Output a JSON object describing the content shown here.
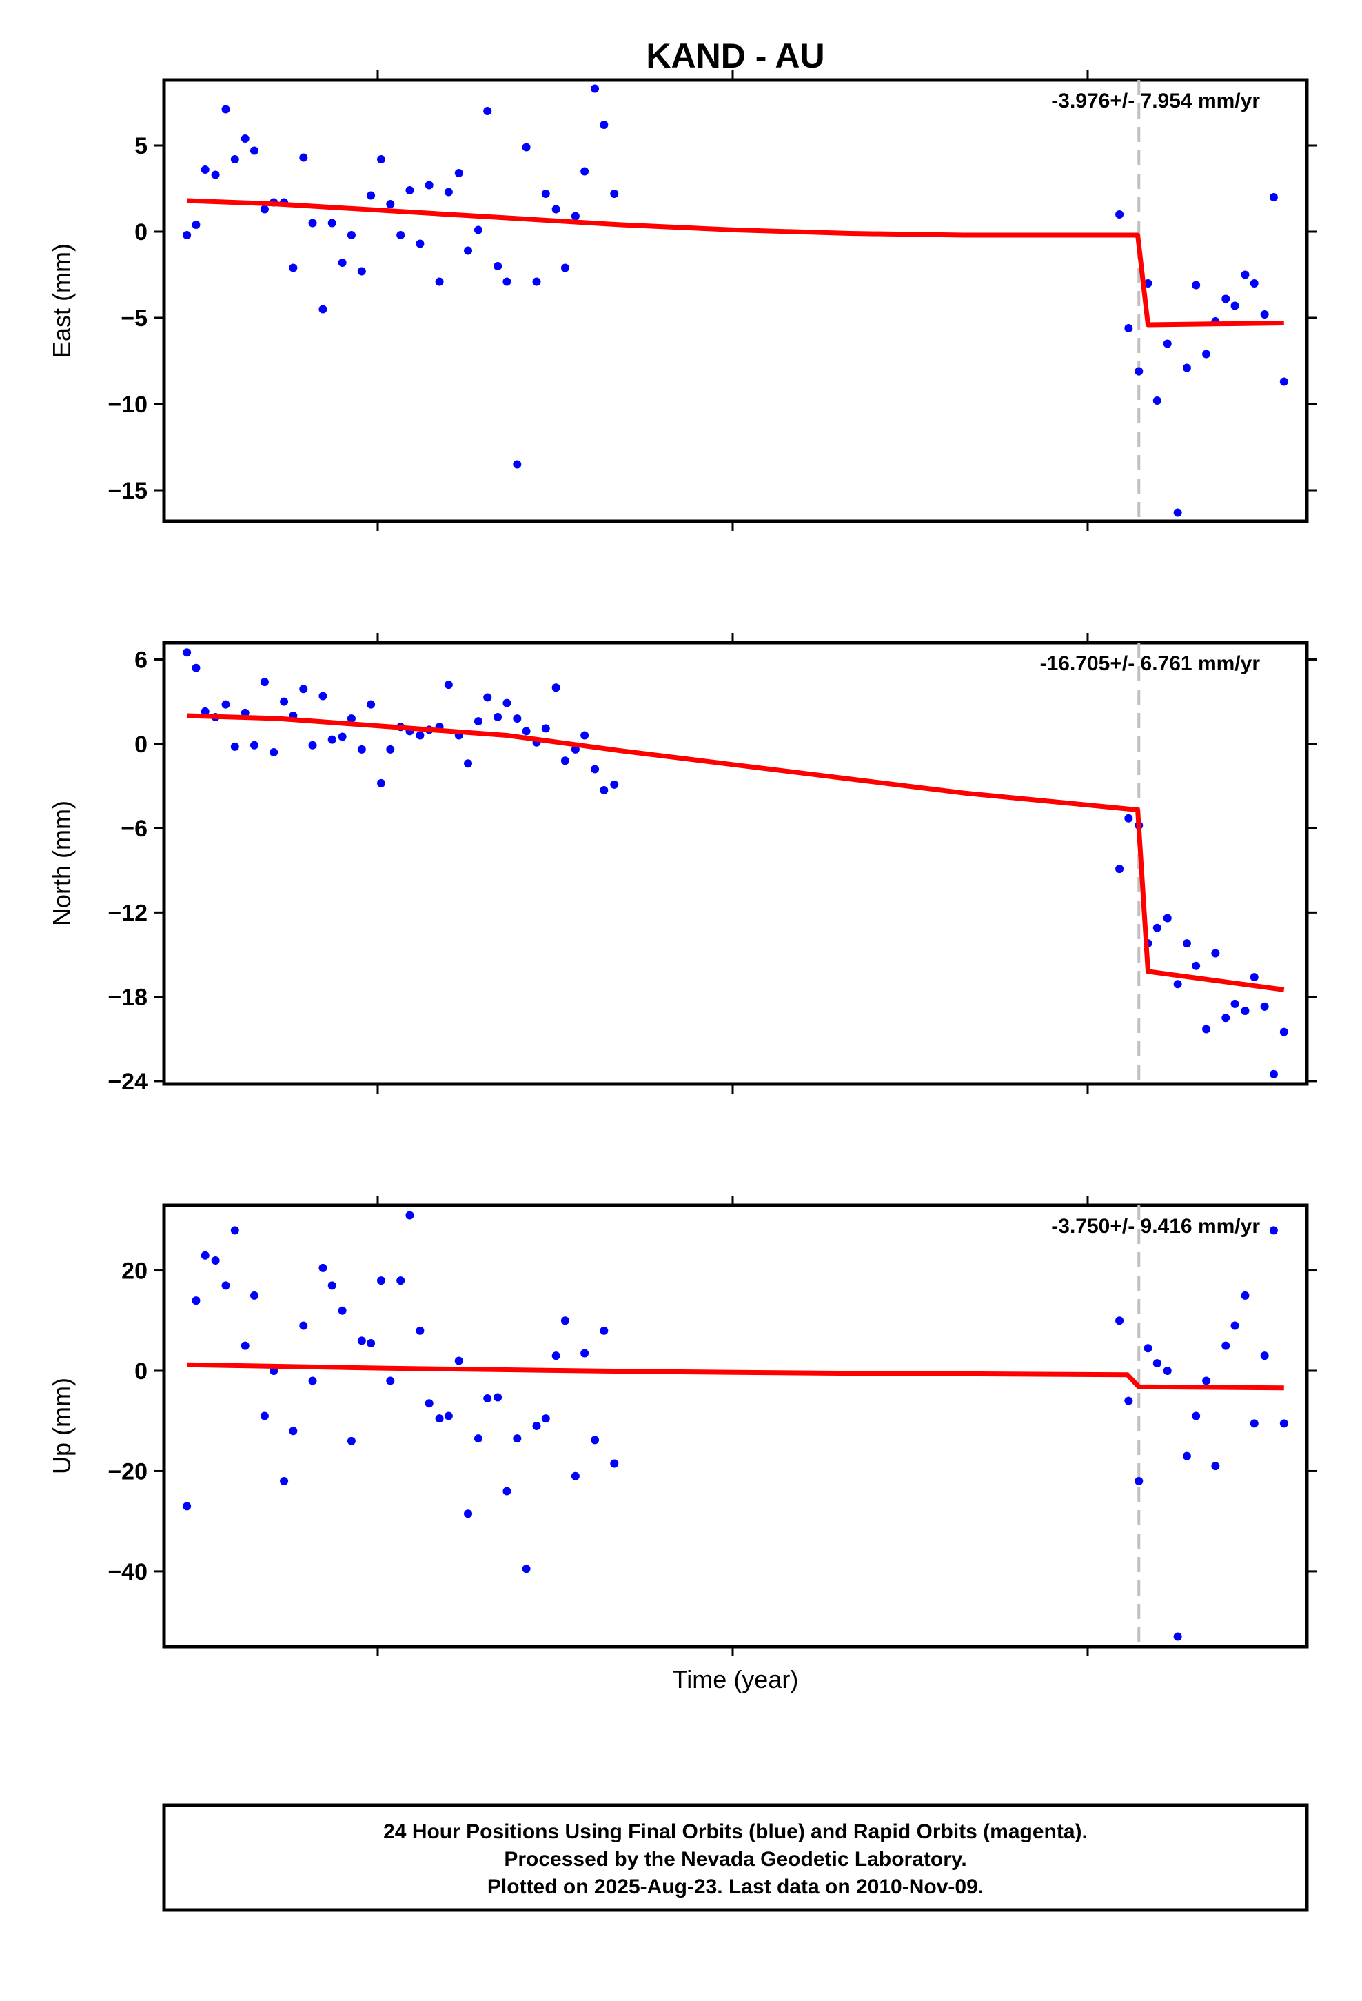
{
  "title": "KAND - AU",
  "xlabel": "Time (year)",
  "footer": {
    "line1": "24 Hour Positions Using Final Orbits (blue) and Rapid Orbits (magenta).",
    "line2": "Processed by the Nevada Geodetic Laboratory.",
    "line3": "Plotted on 2025-Aug-23. Last data on 2010-Nov-09."
  },
  "colors": {
    "data": "#0000ff",
    "model": "#ff0000",
    "break": "#c0c0c0",
    "frame": "#000000"
  },
  "chart_data": [
    {
      "type": "scatter",
      "ylabel": "East (mm)",
      "rate_label": "-3.976+/- 7.954 mm/yr",
      "ylim": [
        -16.8,
        8.8
      ],
      "xlim": [
        0,
        100
      ],
      "yticks": [
        5,
        0,
        -5,
        -10,
        -15
      ],
      "ytick_labels": [
        "5",
        "0",
        "−5",
        "−10",
        "−15"
      ],
      "break_x": 85.3,
      "points": [
        [
          2,
          -0.2
        ],
        [
          2.8,
          0.4
        ],
        [
          3.6,
          3.6
        ],
        [
          4.5,
          3.3
        ],
        [
          5.4,
          7.1
        ],
        [
          6.2,
          4.2
        ],
        [
          7.1,
          5.4
        ],
        [
          7.9,
          4.7
        ],
        [
          8.8,
          1.3
        ],
        [
          9.6,
          1.7
        ],
        [
          10.5,
          1.7
        ],
        [
          11.3,
          -2.1
        ],
        [
          12.2,
          4.3
        ],
        [
          13,
          0.5
        ],
        [
          13.9,
          -4.5
        ],
        [
          14.7,
          0.5
        ],
        [
          15.6,
          -1.8
        ],
        [
          16.4,
          -0.2
        ],
        [
          17.3,
          -2.3
        ],
        [
          18.1,
          2.1
        ],
        [
          19,
          4.2
        ],
        [
          19.8,
          1.6
        ],
        [
          20.7,
          -0.2
        ],
        [
          21.5,
          2.4
        ],
        [
          22.4,
          -0.7
        ],
        [
          23.2,
          2.7
        ],
        [
          24.1,
          -2.9
        ],
        [
          24.9,
          2.3
        ],
        [
          25.8,
          3.4
        ],
        [
          26.6,
          -1.1
        ],
        [
          27.5,
          0.1
        ],
        [
          28.3,
          7.0
        ],
        [
          29.2,
          -2.0
        ],
        [
          30,
          -2.9
        ],
        [
          30.9,
          -13.5
        ],
        [
          31.7,
          4.9
        ],
        [
          32.6,
          -2.9
        ],
        [
          33.4,
          2.2
        ],
        [
          34.3,
          1.3
        ],
        [
          35.1,
          -2.1
        ],
        [
          36,
          0.9
        ],
        [
          36.8,
          3.5
        ],
        [
          37.7,
          8.3
        ],
        [
          38.5,
          6.2
        ],
        [
          39.4,
          2.2
        ],
        [
          83.6,
          1.0
        ],
        [
          84.4,
          -5.6
        ],
        [
          85.3,
          -8.1
        ],
        [
          86.1,
          -3.0
        ],
        [
          86.9,
          -9.8
        ],
        [
          87.8,
          -6.5
        ],
        [
          88.7,
          -16.3
        ],
        [
          89.5,
          -7.9
        ],
        [
          90.3,
          -3.1
        ],
        [
          91.2,
          -7.1
        ],
        [
          92,
          -5.2
        ],
        [
          92.9,
          -3.9
        ],
        [
          93.7,
          -4.3
        ],
        [
          94.6,
          -2.5
        ],
        [
          95.4,
          -3.0
        ],
        [
          96.3,
          -4.8
        ],
        [
          97.1,
          2.0
        ],
        [
          98,
          -8.7
        ]
      ],
      "model": [
        [
          2,
          1.8
        ],
        [
          10,
          1.6
        ],
        [
          20,
          1.2
        ],
        [
          30,
          0.8
        ],
        [
          40,
          0.4
        ],
        [
          50,
          0.1
        ],
        [
          60,
          -0.1
        ],
        [
          70,
          -0.2
        ],
        [
          85.2,
          -0.2
        ],
        [
          86.1,
          -5.4
        ],
        [
          98,
          -5.3
        ]
      ]
    },
    {
      "type": "scatter",
      "ylabel": "North (mm)",
      "rate_label": "-16.705+/- 6.761 mm/yr",
      "ylim": [
        -24.2,
        7.2
      ],
      "xlim": [
        0,
        100
      ],
      "yticks": [
        6,
        0,
        -6,
        -12,
        -18,
        -24
      ],
      "ytick_labels": [
        "6",
        "0",
        "−6",
        "−12",
        "−18",
        "−24"
      ],
      "break_x": 85.3,
      "points": [
        [
          2,
          6.5
        ],
        [
          2.8,
          5.4
        ],
        [
          3.6,
          2.3
        ],
        [
          4.5,
          1.9
        ],
        [
          5.4,
          2.8
        ],
        [
          6.2,
          -0.2
        ],
        [
          7.1,
          2.2
        ],
        [
          7.9,
          -0.1
        ],
        [
          8.8,
          4.4
        ],
        [
          9.6,
          -0.6
        ],
        [
          10.5,
          3.0
        ],
        [
          11.3,
          2.0
        ],
        [
          12.2,
          3.9
        ],
        [
          13,
          -0.1
        ],
        [
          13.9,
          3.4
        ],
        [
          14.7,
          0.3
        ],
        [
          15.6,
          0.5
        ],
        [
          16.4,
          1.8
        ],
        [
          17.3,
          -0.4
        ],
        [
          18.1,
          2.8
        ],
        [
          19,
          -2.8
        ],
        [
          19.8,
          -0.4
        ],
        [
          20.7,
          1.2
        ],
        [
          21.5,
          0.9
        ],
        [
          22.4,
          0.6
        ],
        [
          23.2,
          1.0
        ],
        [
          24.1,
          1.2
        ],
        [
          24.9,
          4.2
        ],
        [
          25.8,
          0.6
        ],
        [
          26.6,
          -1.4
        ],
        [
          27.5,
          1.6
        ],
        [
          28.3,
          3.3
        ],
        [
          29.2,
          1.9
        ],
        [
          30,
          2.9
        ],
        [
          30.9,
          1.8
        ],
        [
          31.7,
          0.9
        ],
        [
          32.6,
          0.1
        ],
        [
          33.4,
          1.1
        ],
        [
          34.3,
          4.0
        ],
        [
          35.1,
          -1.2
        ],
        [
          36,
          -0.4
        ],
        [
          36.8,
          0.6
        ],
        [
          37.7,
          -1.8
        ],
        [
          38.5,
          -3.3
        ],
        [
          39.4,
          -2.9
        ],
        [
          83.6,
          -8.9
        ],
        [
          84.4,
          -5.3
        ],
        [
          85.3,
          -5.8
        ],
        [
          86.1,
          -14.2
        ],
        [
          86.9,
          -13.1
        ],
        [
          87.8,
          -12.4
        ],
        [
          88.7,
          -17.1
        ],
        [
          89.5,
          -14.2
        ],
        [
          90.3,
          -15.8
        ],
        [
          91.2,
          -20.3
        ],
        [
          92,
          -14.9
        ],
        [
          92.9,
          -19.5
        ],
        [
          93.7,
          -18.5
        ],
        [
          94.6,
          -19.0
        ],
        [
          95.4,
          -16.6
        ],
        [
          96.3,
          -18.7
        ],
        [
          97.1,
          -23.5
        ],
        [
          98,
          -20.5
        ]
      ],
      "model": [
        [
          2,
          2.0
        ],
        [
          10,
          1.8
        ],
        [
          20,
          1.2
        ],
        [
          30,
          0.6
        ],
        [
          40,
          -0.5
        ],
        [
          50,
          -1.5
        ],
        [
          60,
          -2.5
        ],
        [
          70,
          -3.5
        ],
        [
          85.2,
          -4.7
        ],
        [
          86.1,
          -16.2
        ],
        [
          98,
          -17.5
        ]
      ]
    },
    {
      "type": "scatter",
      "ylabel": "Up (mm)",
      "rate_label": "-3.750+/- 9.416 mm/yr",
      "ylim": [
        -55,
        33
      ],
      "xlim": [
        0,
        100
      ],
      "yticks": [
        20,
        0,
        -20,
        -40
      ],
      "ytick_labels": [
        "20",
        "0",
        "−20",
        "−40"
      ],
      "break_x": 85.3,
      "points": [
        [
          2,
          -27
        ],
        [
          2.8,
          14
        ],
        [
          3.6,
          23
        ],
        [
          4.5,
          22
        ],
        [
          5.4,
          17
        ],
        [
          6.2,
          28
        ],
        [
          7.1,
          5
        ],
        [
          7.9,
          15
        ],
        [
          8.8,
          -9
        ],
        [
          9.6,
          0
        ],
        [
          10.5,
          -22
        ],
        [
          11.3,
          -12
        ],
        [
          12.2,
          9
        ],
        [
          13,
          -2
        ],
        [
          13.9,
          20.5
        ],
        [
          14.7,
          17
        ],
        [
          15.6,
          12
        ],
        [
          16.4,
          -14
        ],
        [
          17.3,
          6
        ],
        [
          18.1,
          5.5
        ],
        [
          19,
          18
        ],
        [
          19.8,
          -2
        ],
        [
          20.7,
          18
        ],
        [
          21.5,
          31
        ],
        [
          22.4,
          8
        ],
        [
          23.2,
          -6.5
        ],
        [
          24.1,
          -9.5
        ],
        [
          24.9,
          -9
        ],
        [
          25.8,
          2
        ],
        [
          26.6,
          -28.5
        ],
        [
          27.5,
          -13.5
        ],
        [
          28.3,
          -5.5
        ],
        [
          29.2,
          -5.3
        ],
        [
          30,
          -24
        ],
        [
          30.9,
          -13.5
        ],
        [
          31.7,
          -39.5
        ],
        [
          32.6,
          -11
        ],
        [
          33.4,
          -9.5
        ],
        [
          34.3,
          3
        ],
        [
          35.1,
          10
        ],
        [
          36,
          -21
        ],
        [
          36.8,
          3.5
        ],
        [
          37.7,
          -13.8
        ],
        [
          38.5,
          8
        ],
        [
          39.4,
          -18.5
        ],
        [
          83.6,
          10
        ],
        [
          84.4,
          -6
        ],
        [
          85.3,
          -22
        ],
        [
          86.1,
          4.5
        ],
        [
          86.9,
          1.5
        ],
        [
          87.8,
          0
        ],
        [
          88.7,
          -53
        ],
        [
          89.5,
          -17
        ],
        [
          90.3,
          -9
        ],
        [
          91.2,
          -2
        ],
        [
          92,
          -19
        ],
        [
          92.9,
          5
        ],
        [
          93.7,
          9
        ],
        [
          94.6,
          15
        ],
        [
          95.4,
          -10.5
        ],
        [
          96.3,
          3
        ],
        [
          97.1,
          28
        ],
        [
          98,
          -10.5
        ]
      ],
      "model": [
        [
          2,
          1.2
        ],
        [
          10,
          0.9
        ],
        [
          20,
          0.5
        ],
        [
          30,
          0.2
        ],
        [
          40,
          -0.1
        ],
        [
          50,
          -0.3
        ],
        [
          60,
          -0.5
        ],
        [
          70,
          -0.6
        ],
        [
          84.3,
          -0.8
        ],
        [
          85.3,
          -3.2
        ],
        [
          98,
          -3.4
        ]
      ]
    }
  ]
}
